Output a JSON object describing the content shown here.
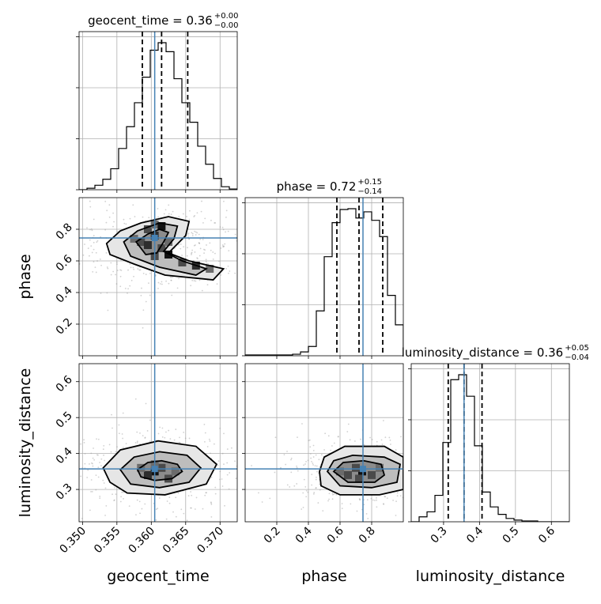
{
  "figure": {
    "type": "corner",
    "parameters": [
      "geocent_time",
      "phase",
      "luminosity_distance"
    ]
  },
  "titles": {
    "geocent_time": {
      "name": "geocent_time",
      "value": "0.36",
      "plus": "+0.00",
      "minus": "−0.00"
    },
    "phase": {
      "name": "phase",
      "value": "0.72",
      "plus": "+0.15",
      "minus": "−0.14"
    },
    "luminosity_distance": {
      "name": "luminosity_distance",
      "value": "0.36",
      "plus": "+0.05",
      "minus": "−0.04"
    }
  },
  "axis_labels": {
    "geocent_time": "geocent_time",
    "phase": "phase",
    "luminosity_distance": "luminosity_distance"
  },
  "colors": {
    "truth": "#4682b4",
    "histogram": "#000000",
    "quantile": "#000000",
    "grid": "#b0b0b0"
  },
  "chart_data": {
    "type": "corner",
    "grid": true,
    "truth_values": {
      "geocent_time": 0.3605,
      "phase": 0.745,
      "luminosity_distance": 0.357
    },
    "quantiles": {
      "geocent_time": [
        0.3587,
        0.3615,
        0.3653
      ],
      "phase": [
        0.58,
        0.72,
        0.87
      ],
      "luminosity_distance": [
        0.313,
        0.357,
        0.407
      ]
    },
    "ranges": {
      "geocent_time": [
        0.3495,
        0.3725
      ],
      "phase": [
        0.0,
        1.0
      ],
      "luminosity_distance": [
        0.21,
        0.65
      ]
    },
    "ticks": {
      "geocent_time": {
        "values": [
          0.35,
          0.355,
          0.36,
          0.365,
          0.37
        ],
        "labels": [
          "0.350",
          "0.355",
          "0.360",
          "0.365",
          "0.370"
        ]
      },
      "phase": {
        "values": [
          0.2,
          0.4,
          0.6,
          0.8
        ],
        "labels": [
          "0.2",
          "0.4",
          "0.6",
          "0.8"
        ]
      },
      "luminosity_distance": {
        "values": [
          0.3,
          0.4,
          0.5,
          0.6
        ],
        "labels": [
          "0.3",
          "0.4",
          "0.5",
          "0.6"
        ]
      }
    },
    "histograms": {
      "geocent_time": {
        "edges": [
          0.3495,
          0.35065,
          0.3518,
          0.35295,
          0.3541,
          0.35525,
          0.3564,
          0.35755,
          0.3587,
          0.35985,
          0.361,
          0.36215,
          0.3633,
          0.36445,
          0.3656,
          0.36675,
          0.3679,
          0.36905,
          0.3702,
          0.37135,
          0.3725
        ],
        "counts": [
          0,
          2,
          6,
          14,
          28,
          55,
          84,
          116,
          150,
          186,
          196,
          184,
          148,
          116,
          90,
          58,
          34,
          15,
          4,
          1
        ]
      },
      "phase": {
        "edges": [
          0.0,
          0.05,
          0.1,
          0.15,
          0.2,
          0.25,
          0.3,
          0.35,
          0.4,
          0.45,
          0.5,
          0.55,
          0.6,
          0.65,
          0.7,
          0.75,
          0.8,
          0.85,
          0.9,
          0.95,
          1.0
        ],
        "counts": [
          1,
          1,
          1,
          1,
          1,
          1,
          2,
          5,
          12,
          58,
          128,
          172,
          189,
          190,
          178,
          186,
          175,
          154,
          78,
          40
        ]
      },
      "luminosity_distance": {
        "edges": [
          0.21,
          0.232,
          0.254,
          0.276,
          0.298,
          0.32,
          0.342,
          0.364,
          0.386,
          0.408,
          0.43,
          0.452,
          0.474,
          0.496,
          0.518,
          0.54,
          0.562,
          0.584,
          0.606,
          0.628,
          0.65
        ],
        "counts": [
          0,
          6,
          12,
          32,
          96,
          172,
          178,
          152,
          92,
          36,
          18,
          9,
          4,
          2,
          1,
          1,
          0,
          0,
          0,
          0
        ]
      }
    },
    "contours": {
      "geocent_time__phase": [
        {
          "level": 1,
          "points": [
            [
              0.3535,
              0.71
            ],
            [
              0.3555,
              0.79
            ],
            [
              0.3585,
              0.84
            ],
            [
              0.3625,
              0.88
            ],
            [
              0.3655,
              0.85
            ],
            [
              0.365,
              0.76
            ],
            [
              0.3625,
              0.65
            ],
            [
              0.3655,
              0.6
            ],
            [
              0.3705,
              0.55
            ],
            [
              0.369,
              0.48
            ],
            [
              0.362,
              0.51
            ],
            [
              0.3575,
              0.58
            ],
            [
              0.354,
              0.64
            ]
          ]
        },
        {
          "level": 2,
          "points": [
            [
              0.356,
              0.72
            ],
            [
              0.358,
              0.79
            ],
            [
              0.3612,
              0.84
            ],
            [
              0.3638,
              0.82
            ],
            [
              0.3633,
              0.74
            ],
            [
              0.3618,
              0.66
            ],
            [
              0.3645,
              0.6
            ],
            [
              0.368,
              0.55
            ],
            [
              0.3665,
              0.51
            ],
            [
              0.3612,
              0.56
            ],
            [
              0.357,
              0.63
            ]
          ]
        },
        {
          "level": 3,
          "points": [
            [
              0.3578,
              0.72
            ],
            [
              0.3595,
              0.77
            ],
            [
              0.3612,
              0.8
            ],
            [
              0.3625,
              0.78
            ],
            [
              0.3618,
              0.72
            ],
            [
              0.3608,
              0.65
            ],
            [
              0.3592,
              0.64
            ]
          ]
        }
      ],
      "geocent_time__luminosity_distance": [
        {
          "level": 1,
          "points": [
            [
              0.353,
              0.36
            ],
            [
              0.3555,
              0.41
            ],
            [
              0.361,
              0.435
            ],
            [
              0.3665,
              0.42
            ],
            [
              0.3695,
              0.37
            ],
            [
              0.368,
              0.315
            ],
            [
              0.362,
              0.285
            ],
            [
              0.3565,
              0.29
            ],
            [
              0.354,
              0.32
            ]
          ]
        },
        {
          "level": 2,
          "points": [
            [
              0.3555,
              0.355
            ],
            [
              0.3575,
              0.39
            ],
            [
              0.3612,
              0.405
            ],
            [
              0.3652,
              0.395
            ],
            [
              0.3672,
              0.36
            ],
            [
              0.3655,
              0.32
            ],
            [
              0.3612,
              0.305
            ],
            [
              0.357,
              0.315
            ]
          ]
        },
        {
          "level": 3,
          "points": [
            [
              0.358,
              0.355
            ],
            [
              0.3595,
              0.375
            ],
            [
              0.3615,
              0.38
            ],
            [
              0.3638,
              0.37
            ],
            [
              0.3645,
              0.35
            ],
            [
              0.363,
              0.33
            ],
            [
              0.3605,
              0.325
            ],
            [
              0.3585,
              0.335
            ]
          ]
        }
      ],
      "phase__luminosity_distance": [
        {
          "level": 1,
          "points": [
            [
              0.47,
              0.35
            ],
            [
              0.5,
              0.39
            ],
            [
              0.63,
              0.42
            ],
            [
              0.88,
              0.42
            ],
            [
              1.0,
              0.39
            ],
            [
              1.0,
              0.3
            ],
            [
              0.85,
              0.285
            ],
            [
              0.6,
              0.285
            ],
            [
              0.48,
              0.31
            ]
          ]
        },
        {
          "level": 2,
          "points": [
            [
              0.52,
              0.35
            ],
            [
              0.56,
              0.38
            ],
            [
              0.68,
              0.395
            ],
            [
              0.88,
              0.39
            ],
            [
              0.98,
              0.37
            ],
            [
              0.96,
              0.32
            ],
            [
              0.8,
              0.305
            ],
            [
              0.6,
              0.31
            ]
          ]
        },
        {
          "level": 3,
          "points": [
            [
              0.56,
              0.35
            ],
            [
              0.62,
              0.375
            ],
            [
              0.75,
              0.38
            ],
            [
              0.86,
              0.37
            ],
            [
              0.88,
              0.34
            ],
            [
              0.82,
              0.32
            ],
            [
              0.65,
              0.32
            ]
          ]
        }
      ]
    },
    "density_bins": {
      "geocent_time__phase": [
        [
          0.3595,
          0.8,
          3
        ],
        [
          0.3605,
          0.83,
          2
        ],
        [
          0.3615,
          0.82,
          5
        ],
        [
          0.3605,
          0.76,
          4
        ],
        [
          0.3585,
          0.72,
          3
        ],
        [
          0.3595,
          0.7,
          4
        ],
        [
          0.3615,
          0.68,
          3
        ],
        [
          0.3625,
          0.64,
          5
        ],
        [
          0.3605,
          0.63,
          3
        ],
        [
          0.3645,
          0.59,
          3
        ],
        [
          0.3665,
          0.57,
          4
        ],
        [
          0.3685,
          0.55,
          2
        ],
        [
          0.3575,
          0.74,
          2
        ],
        [
          0.3625,
          0.72,
          2
        ]
      ],
      "geocent_time__luminosity_distance": [
        [
          0.3605,
          0.35,
          5
        ],
        [
          0.3615,
          0.36,
          3
        ],
        [
          0.3595,
          0.34,
          4
        ],
        [
          0.3625,
          0.33,
          3
        ],
        [
          0.3585,
          0.36,
          2
        ],
        [
          0.3635,
          0.35,
          2
        ],
        [
          0.3605,
          0.37,
          2
        ]
      ],
      "phase__luminosity_distance": [
        [
          0.74,
          0.35,
          5
        ],
        [
          0.65,
          0.34,
          3
        ],
        [
          0.7,
          0.36,
          3
        ],
        [
          0.8,
          0.34,
          3
        ],
        [
          0.6,
          0.35,
          2
        ],
        [
          0.85,
          0.36,
          2
        ],
        [
          0.72,
          0.33,
          3
        ]
      ]
    }
  }
}
